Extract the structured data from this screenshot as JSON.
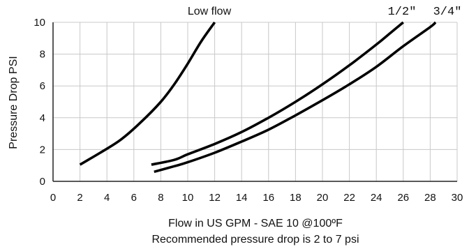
{
  "chart_data": {
    "type": "line",
    "xlabel": "Flow in US GPM - SAE 10 @100ºF",
    "note": "Recommended pressure drop is 2 to 7 psi",
    "ylabel": "Pressure Drop PSI",
    "xlim": [
      0,
      30
    ],
    "ylim": [
      0,
      10
    ],
    "x_ticks": [
      "0",
      "2",
      "4",
      "6",
      "8",
      "10",
      "12",
      "14",
      "16",
      "18",
      "20",
      "22",
      "24",
      "26",
      "28",
      "30"
    ],
    "y_ticks": [
      "0",
      "2",
      "4",
      "6",
      "8",
      "10"
    ],
    "grid": true,
    "series": [
      {
        "name": "Low flow",
        "points": [
          [
            2,
            1.05
          ],
          [
            3.5,
            1.8
          ],
          [
            5,
            2.6
          ],
          [
            6.5,
            3.7
          ],
          [
            8,
            5.0
          ],
          [
            9,
            6.1
          ],
          [
            10,
            7.4
          ],
          [
            11,
            8.8
          ],
          [
            12,
            10.0
          ]
        ]
      },
      {
        "name": "1/2\"",
        "points": [
          [
            7.3,
            1.05
          ],
          [
            9,
            1.35
          ],
          [
            10,
            1.7
          ],
          [
            12,
            2.35
          ],
          [
            14,
            3.1
          ],
          [
            16,
            4.0
          ],
          [
            18,
            5.0
          ],
          [
            20,
            6.1
          ],
          [
            22,
            7.3
          ],
          [
            24,
            8.6
          ],
          [
            25,
            9.3
          ],
          [
            26,
            10.0
          ]
        ]
      },
      {
        "name": "3/4\"",
        "points": [
          [
            7.5,
            0.6
          ],
          [
            9,
            0.95
          ],
          [
            10,
            1.2
          ],
          [
            12,
            1.8
          ],
          [
            14,
            2.5
          ],
          [
            16,
            3.25
          ],
          [
            18,
            4.15
          ],
          [
            20,
            5.1
          ],
          [
            22,
            6.1
          ],
          [
            24,
            7.2
          ],
          [
            26,
            8.5
          ],
          [
            28,
            9.7
          ],
          [
            28.4,
            10.0
          ]
        ]
      }
    ]
  }
}
